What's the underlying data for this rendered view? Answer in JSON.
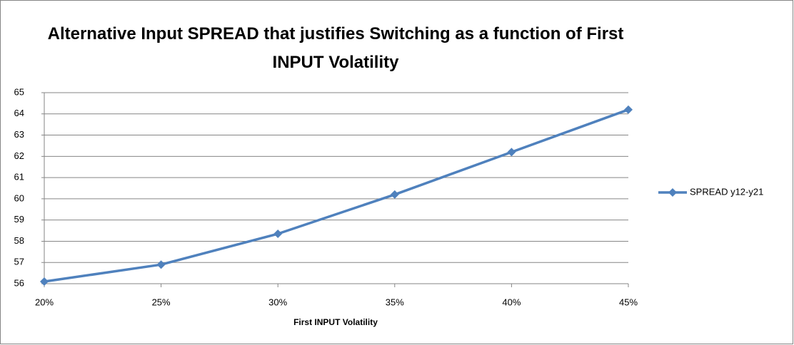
{
  "chart_data": {
    "type": "line",
    "title": "Alternative Input SPREAD that justifies Switching as a function of First INPUT Volatility",
    "xlabel": "First INPUT Volatility",
    "categories": [
      "20%",
      "25%",
      "30%",
      "35%",
      "40%",
      "45%"
    ],
    "series": [
      {
        "name": "SPREAD y12-y21",
        "color": "#4f81bd",
        "values": [
          56.1,
          56.9,
          58.35,
          60.2,
          62.2,
          64.2
        ]
      }
    ],
    "ylim": [
      56,
      65
    ],
    "yticks": [
      56,
      57,
      58,
      59,
      60,
      61,
      62,
      63,
      64,
      65
    ],
    "grid": true,
    "legend": "right"
  }
}
